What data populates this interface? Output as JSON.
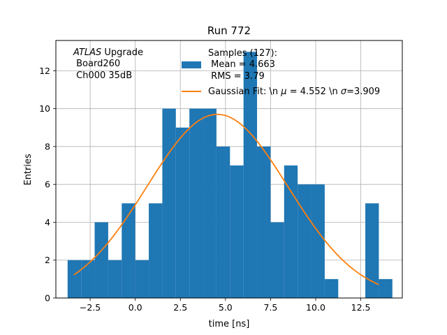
{
  "chart_data": {
    "type": "bar",
    "title": "Run 772",
    "xlabel": "time [ns]",
    "ylabel": "Entries",
    "xlim": [
      -4.4,
      14.8
    ],
    "ylim": [
      0,
      13.6
    ],
    "grid": true,
    "xticks": [
      -2.5,
      0.0,
      2.5,
      5.0,
      7.5,
      10.0,
      12.5
    ],
    "xtick_labels": [
      "−2.5",
      "0.0",
      "2.5",
      "5.0",
      "7.5",
      "10.0",
      "12.5"
    ],
    "yticks": [
      0,
      2,
      4,
      6,
      8,
      10,
      12
    ],
    "ytick_labels": [
      "0",
      "2",
      "4",
      "6",
      "8",
      "10",
      "12"
    ],
    "histogram": {
      "name": "Samples (127):",
      "color": "#1f77b4",
      "bin_edges": [
        -3.75,
        -3.0,
        -2.25,
        -1.5,
        -0.75,
        0.0,
        0.75,
        1.5,
        2.25,
        3.0,
        3.75,
        4.5,
        5.25,
        6.0,
        6.75,
        7.5,
        8.25,
        9.0,
        9.75,
        10.5,
        11.25,
        12.0,
        12.75,
        13.5,
        14.25
      ],
      "counts": [
        2,
        2,
        4,
        2,
        5,
        2,
        5,
        10,
        9,
        10,
        10,
        8,
        7,
        13,
        8,
        4,
        7,
        6,
        6,
        1,
        0,
        0,
        5,
        1
      ]
    },
    "fit": {
      "name": "Gaussian Fit: \\n $\\mu$ = 4.552 \\n $\\sigma$=3.909",
      "color": "#ff7f0e",
      "mu": 4.552,
      "sigma": 3.909,
      "amplitude": 9.7,
      "x_range": [
        -3.4,
        13.5
      ]
    },
    "legend": {
      "placement": "top-center",
      "hist_line1": "Samples (127):",
      "hist_line2": " Mean = 4.663",
      "hist_line3": " RMS = 3.79",
      "fit_prefix": "Gaussian Fit: \\n ",
      "fit_mu_symbol": "μ",
      "fit_mid": " = 4.552 \\n ",
      "fit_sigma_symbol": "σ",
      "fit_suffix": "=3.909"
    },
    "annotation": {
      "line1_italic": "ATLAS",
      "line1_rest": " Upgrade",
      "line2": " Board260",
      "line3": " Ch000 35dB"
    }
  }
}
